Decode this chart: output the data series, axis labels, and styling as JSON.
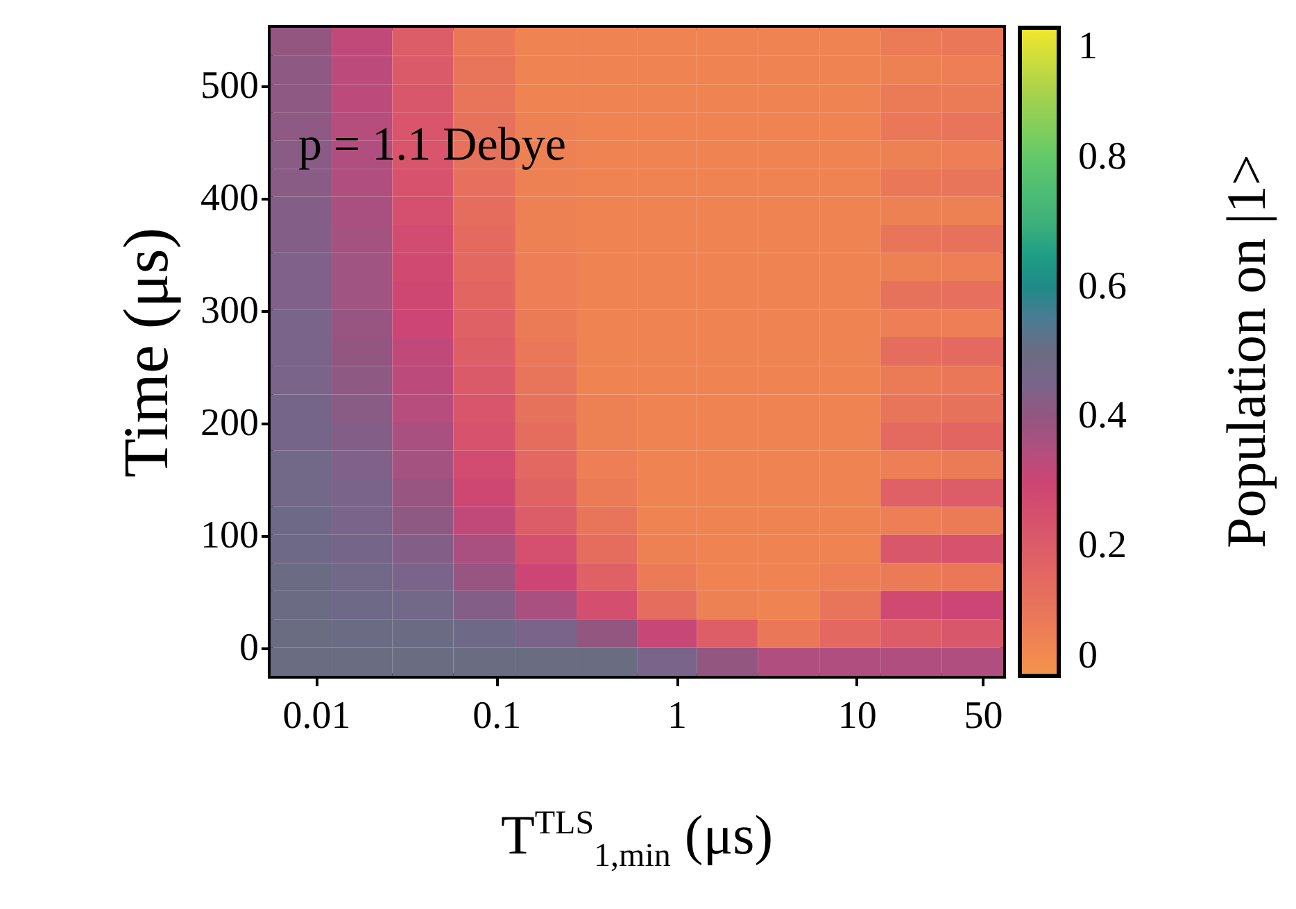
{
  "chart_data": {
    "type": "heatmap",
    "annotations": [
      "p = 1.1 Debye"
    ],
    "xlabel": "T$^{TLS}$$_{1,min}$ (μs)",
    "ylabel": "Time (μs)",
    "clabel": "Population on |1>",
    "log": "x",
    "xlim": [
      0.0056,
      65
    ],
    "xticks": [
      0.01,
      0.1,
      1,
      10,
      50
    ],
    "ylim": [
      -25,
      552
    ],
    "yticks": [
      0,
      100,
      200,
      300,
      400,
      500
    ],
    "clim": [
      0,
      1
    ],
    "cticks": [
      0,
      0.2,
      0.4,
      0.6,
      0.8,
      1
    ],
    "colors": [
      "#f4944a",
      "#e8755a",
      "#dc5c68",
      "#cc4574",
      "#935680",
      "#6a6c82",
      "#1f8a88",
      "#3fb07a",
      "#62c96a",
      "#a8d14c",
      "#f3e62b"
    ],
    "x": [
      0.0083,
      0.018,
      0.039,
      0.086,
      0.19,
      0.41,
      0.89,
      1.9,
      4.2,
      9.2,
      20,
      44
    ],
    "y": [
      540,
      514,
      489,
      464,
      439,
      414,
      389,
      364,
      339,
      314,
      289,
      264,
      238,
      213,
      188,
      163,
      138,
      113,
      88,
      63,
      38,
      13,
      -13
    ],
    "cells": [
      [
        0.4,
        0.32,
        0.2,
        0.09,
        0.05,
        0.05,
        0.05,
        0.05,
        0.05,
        0.05,
        0.08,
        0.09
      ],
      [
        0.41,
        0.33,
        0.21,
        0.1,
        0.05,
        0.05,
        0.05,
        0.05,
        0.05,
        0.05,
        0.06,
        0.07
      ],
      [
        0.41,
        0.33,
        0.22,
        0.1,
        0.05,
        0.05,
        0.05,
        0.05,
        0.05,
        0.05,
        0.08,
        0.08
      ],
      [
        0.41,
        0.34,
        0.23,
        0.11,
        0.06,
        0.05,
        0.05,
        0.05,
        0.05,
        0.05,
        0.09,
        0.1
      ],
      [
        0.42,
        0.35,
        0.23,
        0.11,
        0.06,
        0.05,
        0.05,
        0.05,
        0.05,
        0.05,
        0.06,
        0.07
      ],
      [
        0.42,
        0.35,
        0.24,
        0.12,
        0.06,
        0.05,
        0.05,
        0.05,
        0.05,
        0.05,
        0.09,
        0.1
      ],
      [
        0.43,
        0.36,
        0.25,
        0.13,
        0.06,
        0.05,
        0.05,
        0.05,
        0.05,
        0.05,
        0.06,
        0.06
      ],
      [
        0.43,
        0.37,
        0.27,
        0.14,
        0.06,
        0.05,
        0.05,
        0.05,
        0.05,
        0.05,
        0.1,
        0.11
      ],
      [
        0.44,
        0.38,
        0.28,
        0.15,
        0.07,
        0.05,
        0.05,
        0.05,
        0.05,
        0.05,
        0.06,
        0.07
      ],
      [
        0.44,
        0.38,
        0.29,
        0.16,
        0.07,
        0.05,
        0.05,
        0.05,
        0.05,
        0.05,
        0.11,
        0.12
      ],
      [
        0.45,
        0.39,
        0.3,
        0.18,
        0.08,
        0.05,
        0.05,
        0.05,
        0.05,
        0.05,
        0.07,
        0.07
      ],
      [
        0.45,
        0.4,
        0.32,
        0.19,
        0.09,
        0.05,
        0.05,
        0.05,
        0.05,
        0.05,
        0.13,
        0.14
      ],
      [
        0.45,
        0.41,
        0.33,
        0.21,
        0.1,
        0.05,
        0.05,
        0.05,
        0.05,
        0.05,
        0.08,
        0.09
      ],
      [
        0.46,
        0.42,
        0.34,
        0.23,
        0.11,
        0.06,
        0.05,
        0.05,
        0.05,
        0.05,
        0.1,
        0.11
      ],
      [
        0.46,
        0.43,
        0.36,
        0.24,
        0.13,
        0.06,
        0.05,
        0.05,
        0.05,
        0.05,
        0.14,
        0.16
      ],
      [
        0.47,
        0.44,
        0.37,
        0.27,
        0.15,
        0.07,
        0.05,
        0.05,
        0.05,
        0.05,
        0.07,
        0.08
      ],
      [
        0.47,
        0.45,
        0.39,
        0.29,
        0.17,
        0.08,
        0.05,
        0.05,
        0.05,
        0.05,
        0.18,
        0.2
      ],
      [
        0.48,
        0.45,
        0.41,
        0.32,
        0.2,
        0.1,
        0.05,
        0.05,
        0.05,
        0.05,
        0.07,
        0.08
      ],
      [
        0.48,
        0.46,
        0.43,
        0.36,
        0.25,
        0.13,
        0.06,
        0.05,
        0.05,
        0.05,
        0.22,
        0.24
      ],
      [
        0.49,
        0.47,
        0.45,
        0.39,
        0.3,
        0.18,
        0.08,
        0.05,
        0.05,
        0.07,
        0.08,
        0.09
      ],
      [
        0.49,
        0.48,
        0.47,
        0.43,
        0.36,
        0.26,
        0.13,
        0.06,
        0.05,
        0.1,
        0.28,
        0.3
      ],
      [
        0.5,
        0.49,
        0.49,
        0.48,
        0.45,
        0.4,
        0.31,
        0.19,
        0.09,
        0.15,
        0.2,
        0.22
      ],
      [
        0.5,
        0.5,
        0.5,
        0.5,
        0.5,
        0.5,
        0.45,
        0.4,
        0.35,
        0.35,
        0.35,
        0.35
      ]
    ]
  }
}
